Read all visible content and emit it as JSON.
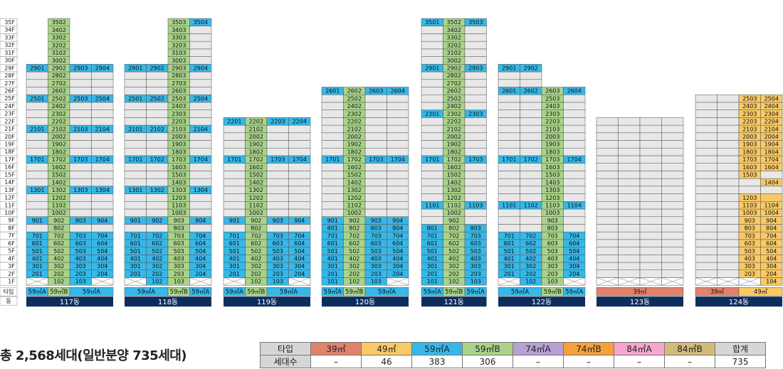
{
  "colors": {
    "59A": "#36b8e8",
    "59B": "#a9d38a",
    "39": "#e0826c",
    "49": "#f8c964",
    "74A": "#b7a0d3",
    "74B": "#f6a03a",
    "84A": "#f4a6cc",
    "84B": "#d3ba7a",
    "empty": "#e8e8e8",
    "building_bar": "#0d2e5c"
  },
  "floor_labels": [
    "35F",
    "34F",
    "33F",
    "32F",
    "31F",
    "30F",
    "29F",
    "28F",
    "27F",
    "26F",
    "25F",
    "24F",
    "23F",
    "22F",
    "21F",
    "20F",
    "19F",
    "18F",
    "17F",
    "16F",
    "15F",
    "14F",
    "13F",
    "12F",
    "11F",
    "10F",
    "9F",
    "8F",
    "7F",
    "6F",
    "5F",
    "4F",
    "3F",
    "2F",
    "1F"
  ],
  "row_labels": {
    "type": "타입",
    "dong": "동"
  },
  "buildings": [
    {
      "name": "117동",
      "height": 35,
      "cols": 4,
      "heights": [
        29,
        35,
        29,
        29
      ],
      "types": [
        {
          "label": "59㎡A",
          "type": "59A",
          "span": 1
        },
        {
          "label": "59㎡B",
          "type": "59B",
          "span": 1
        },
        {
          "label": "59㎡A",
          "type": "59A",
          "span": 2
        }
      ],
      "col_types": [
        "59A",
        "59B",
        "59A",
        "59A"
      ],
      "blue_floors": [
        [
          2,
          3,
          4,
          5,
          6,
          7,
          9,
          13,
          17,
          21,
          25,
          29,
          35
        ],
        [
          4,
          5,
          6,
          7,
          9
        ],
        [
          2,
          3,
          4,
          5,
          6,
          7,
          9,
          13,
          17,
          21,
          25,
          29
        ],
        [
          2,
          3,
          4,
          5,
          6,
          7,
          9,
          13,
          17,
          21,
          25,
          29
        ]
      ],
      "labeled_floors": [
        [
          2,
          3,
          4,
          5,
          6,
          7,
          9,
          13,
          17,
          21,
          25,
          29,
          35
        ],
        [
          2,
          3,
          4,
          5,
          6,
          7,
          8,
          9,
          10,
          11,
          12,
          13,
          14,
          15,
          16,
          17,
          18,
          19,
          20,
          21,
          22,
          23,
          24,
          25,
          26,
          27,
          28,
          29,
          30,
          31,
          32,
          33,
          34,
          35
        ],
        [
          2,
          3,
          4,
          5,
          6,
          7,
          9,
          13,
          17,
          21,
          25,
          29
        ],
        [
          2,
          3,
          4,
          5,
          6,
          7,
          9,
          13,
          17,
          21,
          25,
          29
        ]
      ],
      "first_floor": [
        null,
        "102",
        "103",
        null
      ]
    },
    {
      "name": "118동",
      "height": 35,
      "cols": 4,
      "heights": [
        29,
        29,
        35,
        35
      ],
      "types": [
        {
          "label": "59㎡A",
          "type": "59A",
          "span": 2
        },
        {
          "label": "59㎡B",
          "type": "59B",
          "span": 1
        },
        {
          "label": "59㎡A",
          "type": "59A",
          "span": 1
        }
      ],
      "col_types": [
        "59A",
        "59A",
        "59B",
        "59A"
      ],
      "blue_floors": [
        [
          2,
          3,
          4,
          5,
          6,
          7,
          9,
          13,
          17,
          21,
          25,
          29
        ],
        [
          2,
          3,
          4,
          5,
          6,
          7,
          9,
          13,
          17,
          21,
          25,
          29
        ],
        [
          4,
          5,
          6,
          7,
          9
        ],
        [
          2,
          3,
          4,
          5,
          6,
          7,
          9,
          13,
          17,
          21,
          25,
          29,
          35
        ]
      ],
      "labeled_floors": [
        [
          2,
          3,
          4,
          5,
          6,
          7,
          9,
          13,
          17,
          21,
          25,
          29
        ],
        [
          2,
          3,
          4,
          5,
          6,
          7,
          9,
          13,
          17,
          21,
          25,
          29
        ],
        [
          2,
          3,
          4,
          5,
          6,
          7,
          8,
          9,
          10,
          11,
          12,
          13,
          14,
          15,
          16,
          17,
          18,
          19,
          20,
          21,
          22,
          23,
          24,
          25,
          26,
          27,
          28,
          29,
          30,
          31,
          32,
          33,
          34,
          35
        ],
        [
          2,
          3,
          4,
          5,
          6,
          7,
          9,
          13,
          17,
          21,
          25,
          29,
          35
        ]
      ],
      "first_floor": [
        null,
        "102",
        "103",
        null
      ]
    },
    {
      "name": "119동",
      "height": 22,
      "cols": 4,
      "heights": [
        22,
        22,
        22,
        22
      ],
      "types": [
        {
          "label": "59㎡A",
          "type": "59A",
          "span": 1
        },
        {
          "label": "59㎡B",
          "type": "59B",
          "span": 1
        },
        {
          "label": "59㎡A",
          "type": "59A",
          "span": 2
        }
      ],
      "col_types": [
        "59A",
        "59B",
        "59A",
        "59A"
      ],
      "blue_floors": [
        [
          2,
          3,
          4,
          5,
          6,
          7,
          9,
          17,
          22
        ],
        [
          4,
          5,
          6,
          7,
          9
        ],
        [
          2,
          3,
          4,
          5,
          6,
          7,
          9,
          17,
          22
        ],
        [
          2,
          3,
          4,
          5,
          6,
          7,
          9,
          17,
          22
        ]
      ],
      "labeled_floors": [
        [
          2,
          3,
          4,
          5,
          6,
          7,
          9,
          17,
          22
        ],
        [
          2,
          3,
          4,
          5,
          6,
          7,
          8,
          9,
          10,
          11,
          12,
          13,
          14,
          15,
          16,
          17,
          18,
          19,
          20,
          21,
          22
        ],
        [
          2,
          3,
          4,
          5,
          6,
          7,
          9,
          17,
          22
        ],
        [
          2,
          3,
          4,
          5,
          6,
          7,
          9,
          17,
          22
        ]
      ],
      "first_floor": [
        null,
        "102",
        "103",
        null
      ]
    },
    {
      "name": "120동",
      "height": 26,
      "cols": 4,
      "heights": [
        26,
        26,
        26,
        26
      ],
      "types": [
        {
          "label": "59㎡A",
          "type": "59A",
          "span": 1
        },
        {
          "label": "59㎡B",
          "type": "59B",
          "span": 1
        },
        {
          "label": "59㎡A",
          "type": "59A",
          "span": 2
        }
      ],
      "col_types": [
        "59A",
        "59B",
        "59A",
        "59A"
      ],
      "blue_floors": [
        [
          1,
          2,
          3,
          4,
          5,
          6,
          7,
          8,
          9,
          17,
          26
        ],
        [
          4,
          5,
          6,
          7,
          9
        ],
        [
          2,
          3,
          4,
          5,
          6,
          7,
          8,
          9,
          17,
          26
        ],
        [
          2,
          3,
          4,
          5,
          6,
          7,
          8,
          9,
          17,
          26
        ]
      ],
      "labeled_floors": [
        [
          1,
          2,
          3,
          4,
          5,
          6,
          7,
          8,
          9,
          17,
          26
        ],
        [
          2,
          3,
          4,
          5,
          6,
          7,
          8,
          9,
          10,
          11,
          12,
          13,
          14,
          15,
          16,
          17,
          18,
          19,
          20,
          21,
          22,
          23,
          24,
          25,
          26
        ],
        [
          2,
          3,
          4,
          5,
          6,
          7,
          8,
          9,
          17,
          26
        ],
        [
          2,
          3,
          4,
          5,
          6,
          7,
          8,
          9,
          17,
          26
        ]
      ],
      "first_floor": [
        "101",
        "102",
        "103",
        null
      ]
    },
    {
      "name": "121동",
      "height": 35,
      "cols": 3,
      "heights": [
        35,
        35,
        35
      ],
      "types": [
        {
          "label": "59㎡A",
          "type": "59A",
          "span": 1
        },
        {
          "label": "59㎡B",
          "type": "59B",
          "span": 1
        },
        {
          "label": "59㎡A",
          "type": "59A",
          "span": 1
        }
      ],
      "col_types": [
        "59A",
        "59B",
        "59A"
      ],
      "blue_floors": [
        [
          1,
          2,
          3,
          4,
          5,
          6,
          7,
          8,
          11,
          17,
          23,
          29,
          35
        ],
        [
          4,
          5,
          6,
          7,
          8,
          9
        ],
        [
          2,
          3,
          4,
          5,
          6,
          7,
          8,
          11,
          17,
          23,
          29,
          35
        ]
      ],
      "labeled_floors": [
        [
          1,
          2,
          3,
          4,
          5,
          6,
          7,
          8,
          11,
          17,
          23,
          29,
          35
        ],
        [
          1,
          2,
          3,
          4,
          5,
          6,
          7,
          8,
          9,
          10,
          11,
          12,
          13,
          14,
          15,
          16,
          17,
          18,
          19,
          20,
          21,
          22,
          23,
          24,
          25,
          26,
          27,
          28,
          29,
          30,
          31,
          32,
          33,
          34,
          35
        ],
        [
          2,
          3,
          4,
          5,
          6,
          7,
          8,
          11,
          17,
          23,
          29,
          35
        ]
      ],
      "first_floor": [
        "101",
        "102",
        "103"
      ]
    },
    {
      "name": "122동",
      "height": 29,
      "cols": 4,
      "heights": [
        29,
        29,
        26,
        26
      ],
      "types": [
        {
          "label": "59㎡A",
          "type": "59A",
          "span": 2
        },
        {
          "label": "59㎡B",
          "type": "59B",
          "span": 1
        },
        {
          "label": "59㎡A",
          "type": "59A",
          "span": 1
        }
      ],
      "col_types": [
        "59A",
        "59A",
        "59B",
        "59A"
      ],
      "blue_floors": [
        [
          2,
          3,
          4,
          5,
          6,
          7,
          11,
          17,
          26,
          29
        ],
        [
          2,
          3,
          4,
          5,
          6,
          7,
          11,
          17,
          26,
          29
        ],
        [
          4,
          5,
          6,
          7
        ],
        [
          2,
          3,
          4,
          5,
          6,
          7,
          11,
          17,
          26
        ]
      ],
      "labeled_floors": [
        [
          2,
          3,
          4,
          5,
          6,
          7,
          11,
          17,
          26,
          29
        ],
        [
          2,
          3,
          4,
          5,
          6,
          7,
          11,
          17,
          26,
          29
        ],
        [
          2,
          3,
          4,
          5,
          6,
          7,
          8,
          9,
          10,
          11,
          12,
          13,
          14,
          15,
          16,
          17,
          18,
          19,
          20,
          21,
          22,
          23,
          24,
          25,
          26
        ],
        [
          2,
          3,
          4,
          5,
          6,
          7,
          11,
          17,
          26
        ]
      ],
      "first_floor": [
        null,
        "102",
        "103",
        null
      ]
    },
    {
      "name": "123동",
      "height": 22,
      "cols": 4,
      "heights": [
        22,
        22,
        22,
        22
      ],
      "types": [
        {
          "label": "39㎡",
          "type": "39",
          "span": 4
        }
      ],
      "col_types": [
        "39",
        "39",
        "39",
        "39"
      ],
      "blue_floors": [
        [],
        [],
        [],
        []
      ],
      "labeled_floors": [
        [],
        [],
        [],
        []
      ],
      "first_floor": [
        null,
        null,
        null,
        null
      ]
    },
    {
      "name": "124동",
      "height": 25,
      "cols": 4,
      "heights": [
        25,
        25,
        25,
        25
      ],
      "types": [
        {
          "label": "39㎡",
          "type": "39",
          "span": 2
        },
        {
          "label": "49㎡",
          "type": "49",
          "span": 2
        }
      ],
      "col_types": [
        "39",
        "39",
        "49",
        "49"
      ],
      "blue_floors": [
        [],
        [],
        [],
        []
      ],
      "labeled_floors": [
        [],
        [],
        [
          2,
          3,
          4,
          5,
          6,
          7,
          8,
          9,
          10,
          11,
          12,
          15,
          16,
          17,
          18,
          19,
          20,
          21,
          22,
          23,
          24,
          25
        ],
        [
          2,
          3,
          4,
          5,
          6,
          7,
          8,
          9,
          10,
          11,
          14,
          16,
          17,
          18,
          19,
          20,
          21,
          22,
          23,
          24,
          25
        ]
      ],
      "yellow_floors": [
        [],
        [],
        [
          2,
          3,
          4,
          5,
          6,
          7,
          8,
          9,
          10,
          11,
          12,
          15,
          16,
          17,
          18,
          19,
          20,
          21,
          22,
          23,
          24,
          25
        ],
        [
          1,
          2,
          3,
          4,
          5,
          6,
          7,
          8,
          9,
          10,
          11,
          12,
          14,
          16,
          17,
          18,
          19,
          20,
          21,
          22,
          23,
          24,
          25
        ]
      ],
      "first_floor": [
        null,
        null,
        null,
        "104"
      ]
    }
  ],
  "total_text": "총 2,568세대(일반분양 735세대)",
  "summary": {
    "header_label": "타입",
    "count_label": "세대수",
    "columns": [
      {
        "type": "39㎡",
        "color": "#e0826c",
        "count": "–"
      },
      {
        "type": "49㎡",
        "color": "#f8c964",
        "count": "46"
      },
      {
        "type": "59㎡A",
        "color": "#36b8e8",
        "count": "383"
      },
      {
        "type": "59㎡B",
        "color": "#a9d38a",
        "count": "306"
      },
      {
        "type": "74㎡A",
        "color": "#b7a0d3",
        "count": "–"
      },
      {
        "type": "74㎡B",
        "color": "#f6a03a",
        "count": "–"
      },
      {
        "type": "84㎡A",
        "color": "#f4a6cc",
        "count": "–"
      },
      {
        "type": "84㎡B",
        "color": "#d3ba7a",
        "count": "–"
      },
      {
        "type": "합계",
        "color": "#d6d6d6",
        "count": "735"
      }
    ]
  }
}
